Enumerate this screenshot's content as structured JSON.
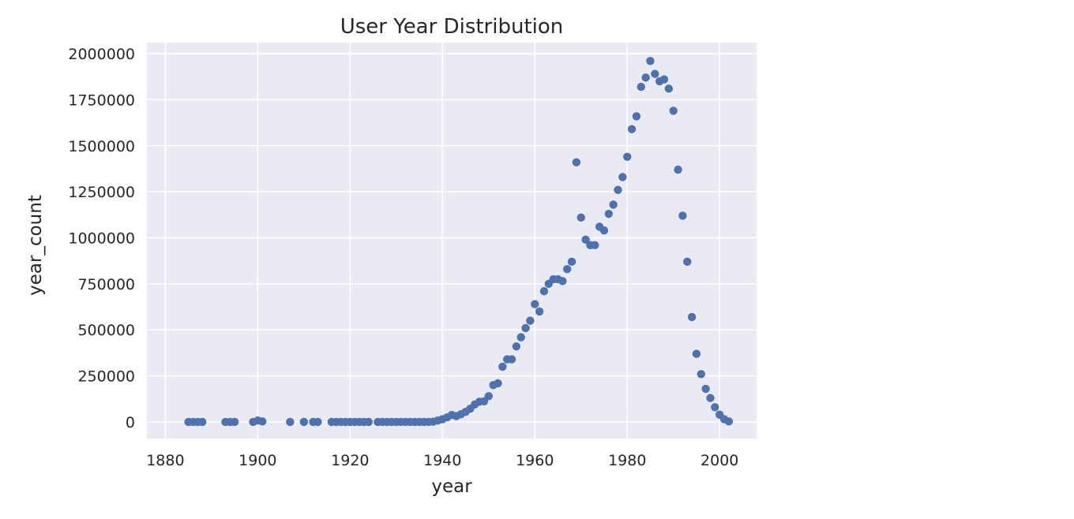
{
  "chart_data": {
    "type": "scatter",
    "title": "User Year Distribution",
    "xlabel": "year",
    "ylabel": "year_count",
    "xlim": [
      1876,
      2008
    ],
    "ylim": [
      -90000,
      2060000
    ],
    "xticks": [
      1880,
      1900,
      1920,
      1940,
      1960,
      1980,
      2000
    ],
    "yticks": [
      0,
      250000,
      500000,
      750000,
      1000000,
      1250000,
      1500000,
      1750000,
      2000000
    ],
    "grid": true,
    "background_color": "#eaeaf2",
    "point_color": "#4c72b0",
    "series": [
      {
        "x": [
          1885,
          1886,
          1887,
          1888,
          1893,
          1894,
          1895,
          1899,
          1900,
          1901,
          1907,
          1910,
          1912,
          1913,
          1916,
          1917,
          1918,
          1919,
          1920,
          1921,
          1922,
          1923,
          1924,
          1926,
          1927,
          1928,
          1929,
          1930,
          1931,
          1932,
          1933,
          1934,
          1935,
          1936,
          1937,
          1938,
          1939,
          1940,
          1941,
          1942,
          1943,
          1944,
          1945,
          1946,
          1947,
          1948,
          1949,
          1950,
          1951,
          1952,
          1953,
          1954,
          1955,
          1956,
          1957,
          1958,
          1959,
          1960,
          1961,
          1962,
          1963,
          1964,
          1965,
          1966,
          1967,
          1968,
          1969,
          1970,
          1971,
          1972,
          1973,
          1974,
          1975,
          1976,
          1977,
          1978,
          1979,
          1980,
          1981,
          1982,
          1983,
          1984,
          1985,
          1986,
          1987,
          1988,
          1989,
          1990,
          1991,
          1992,
          1993,
          1994,
          1995,
          1996,
          1997,
          1998,
          1999,
          2000,
          2001,
          2002
        ],
        "y": [
          0,
          0,
          0,
          0,
          0,
          0,
          0,
          0,
          8000,
          3000,
          0,
          0,
          0,
          0,
          0,
          0,
          0,
          0,
          0,
          0,
          0,
          0,
          0,
          0,
          0,
          0,
          0,
          0,
          0,
          0,
          0,
          0,
          0,
          0,
          0,
          2000,
          8000,
          15000,
          25000,
          38000,
          32000,
          42000,
          55000,
          72000,
          95000,
          110000,
          112000,
          140000,
          200000,
          210000,
          300000,
          340000,
          340000,
          410000,
          460000,
          510000,
          550000,
          640000,
          600000,
          710000,
          750000,
          775000,
          775000,
          765000,
          830000,
          870000,
          1410000,
          1110000,
          990000,
          960000,
          960000,
          1060000,
          1040000,
          1130000,
          1180000,
          1260000,
          1330000,
          1440000,
          1590000,
          1660000,
          1820000,
          1870000,
          1960000,
          1890000,
          1850000,
          1860000,
          1810000,
          1690000,
          1370000,
          1120000,
          870000,
          570000,
          370000,
          260000,
          180000,
          130000,
          80000,
          40000,
          15000,
          3000
        ]
      }
    ]
  }
}
